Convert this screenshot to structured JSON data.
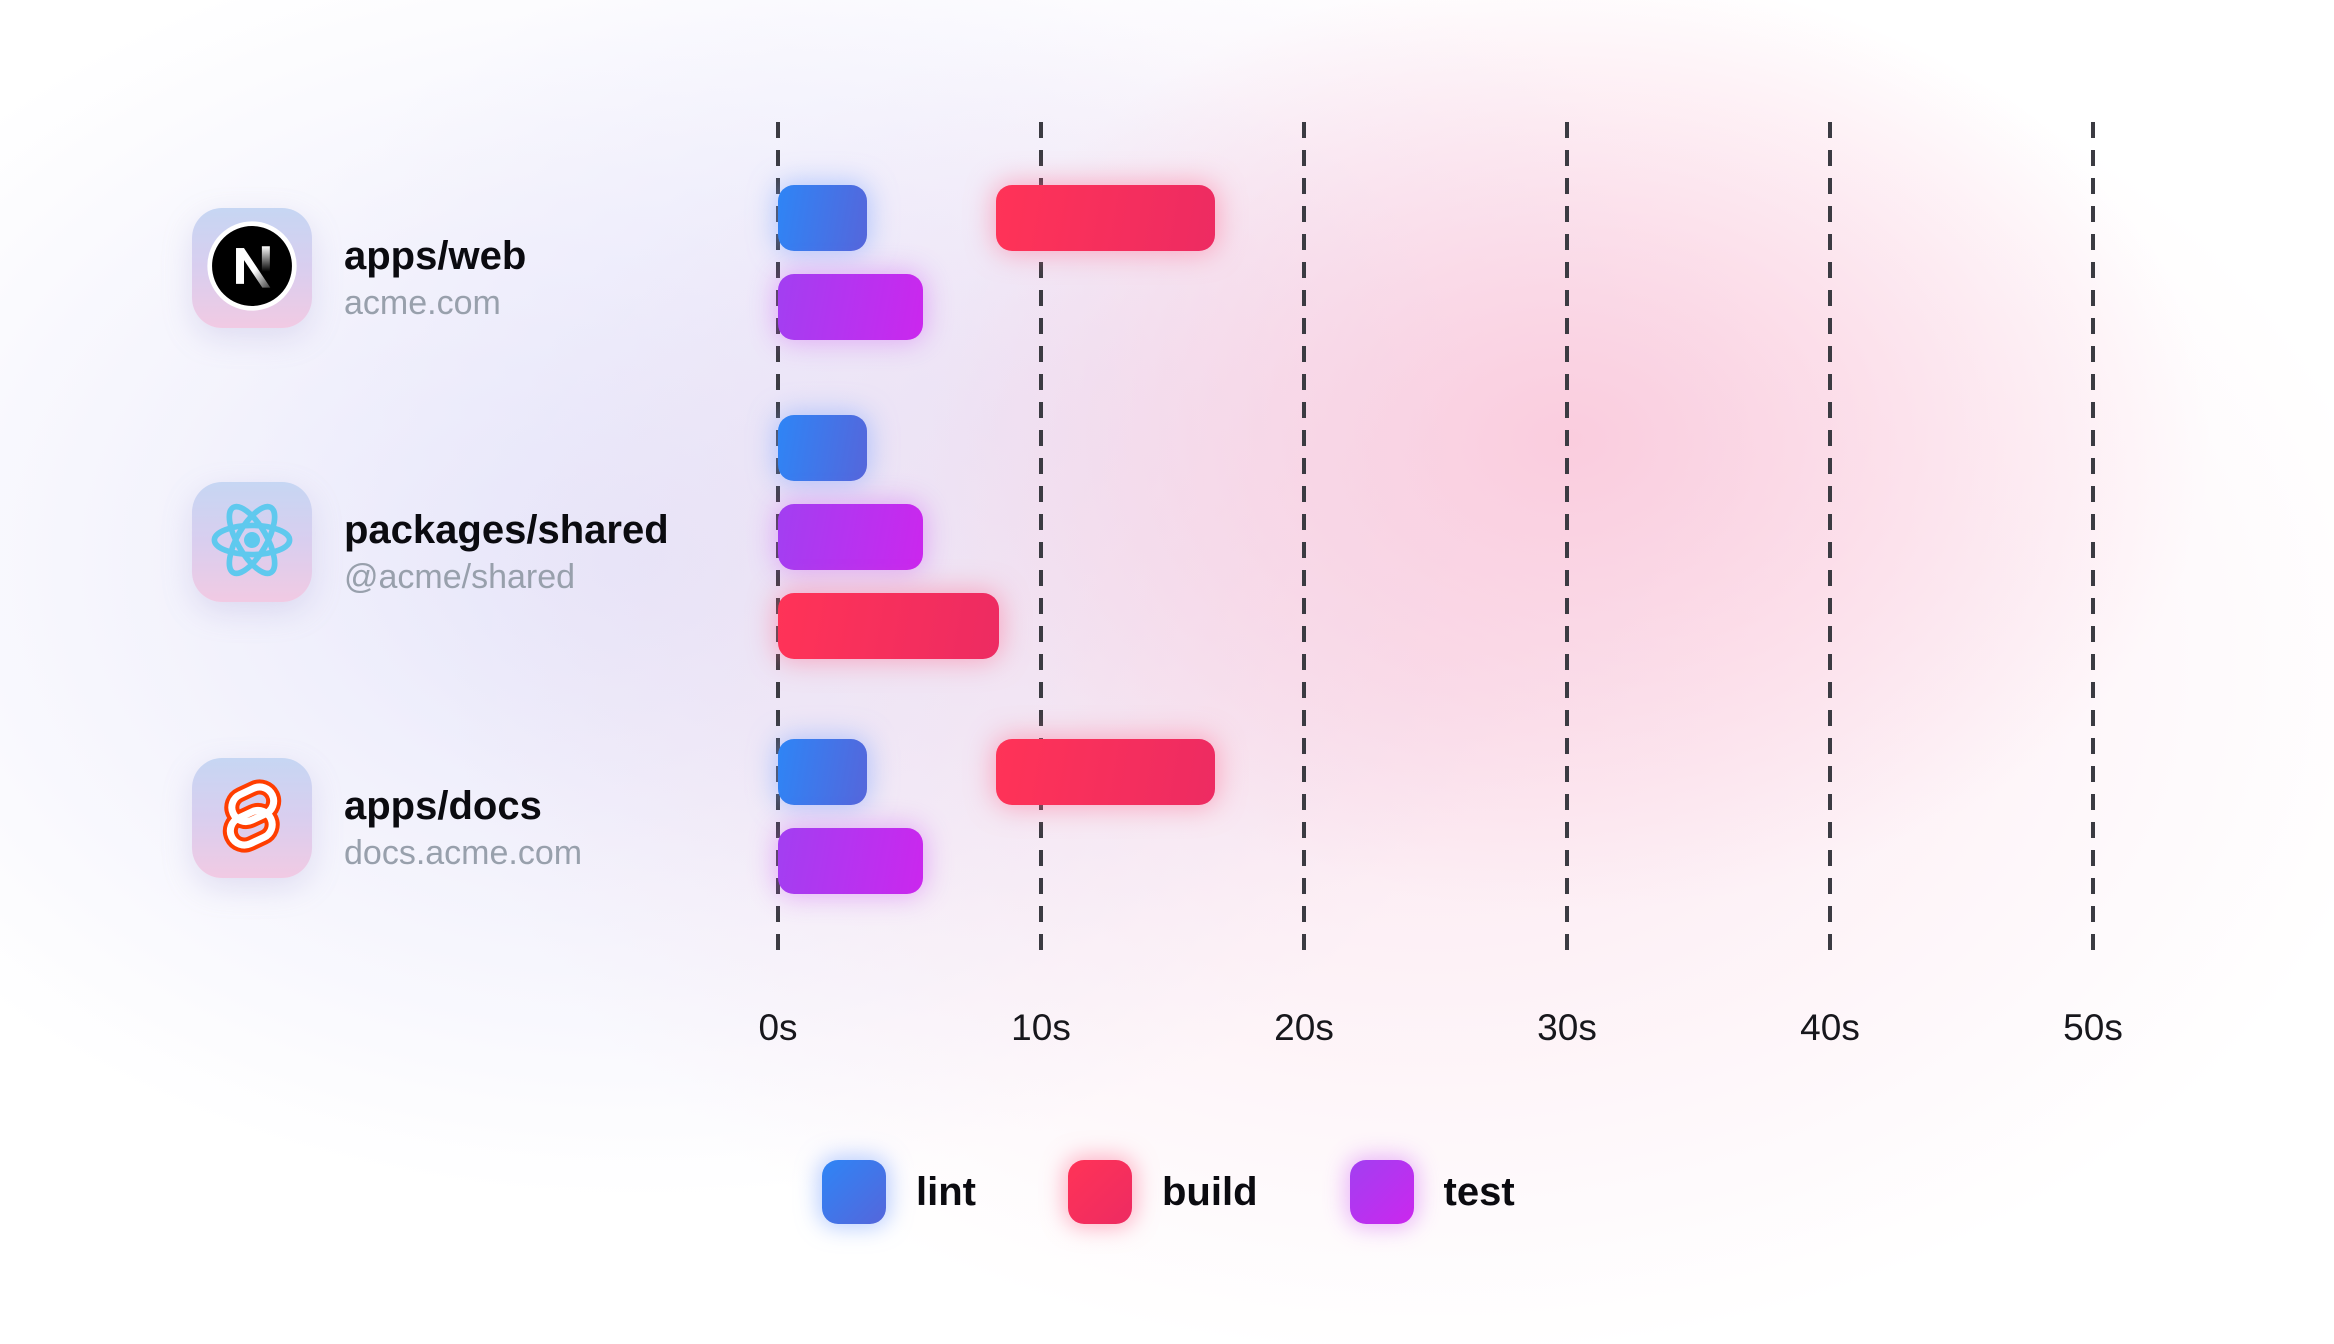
{
  "chart_data": {
    "type": "gantt",
    "x_unit": "seconds",
    "x_range": [
      0,
      50
    ],
    "x_ticks": [
      0,
      10,
      20,
      30,
      40,
      50
    ],
    "x_tick_labels": [
      "0s",
      "10s",
      "20s",
      "30s",
      "40s",
      "50s"
    ],
    "grid": "dashed-vertical",
    "legend_position": "bottom",
    "legend": [
      "lint",
      "build",
      "test"
    ],
    "task_colors": {
      "lint": [
        "#2E85F6",
        "#5566DB"
      ],
      "build": [
        "#FF3357",
        "#ED2B62"
      ],
      "test": [
        "#A23FF1",
        "#CB27EE"
      ]
    },
    "rows": [
      {
        "name": "apps/web",
        "domain": "acme.com",
        "icon": "nextjs-logo",
        "bars": [
          {
            "task": "lint",
            "start_s": 0,
            "end_s": 3.4,
            "lane": 0
          },
          {
            "task": "build",
            "start_s": 8.3,
            "end_s": 16.6,
            "lane": 0
          },
          {
            "task": "test",
            "start_s": 0,
            "end_s": 5.5,
            "lane": 1
          }
        ]
      },
      {
        "name": "packages/shared",
        "domain": "@acme/shared",
        "icon": "react-logo",
        "bars": [
          {
            "task": "lint",
            "start_s": 0,
            "end_s": 3.4,
            "lane": 0
          },
          {
            "task": "test",
            "start_s": 0,
            "end_s": 5.5,
            "lane": 1
          },
          {
            "task": "build",
            "start_s": 0,
            "end_s": 8.4,
            "lane": 2
          }
        ]
      },
      {
        "name": "apps/docs",
        "domain": "docs.acme.com",
        "icon": "svelte-logo",
        "bars": [
          {
            "task": "lint",
            "start_s": 0,
            "end_s": 3.4,
            "lane": 0
          },
          {
            "task": "build",
            "start_s": 8.3,
            "end_s": 16.6,
            "lane": 0
          },
          {
            "task": "test",
            "start_s": 0,
            "end_s": 5.5,
            "lane": 1
          }
        ]
      }
    ]
  }
}
